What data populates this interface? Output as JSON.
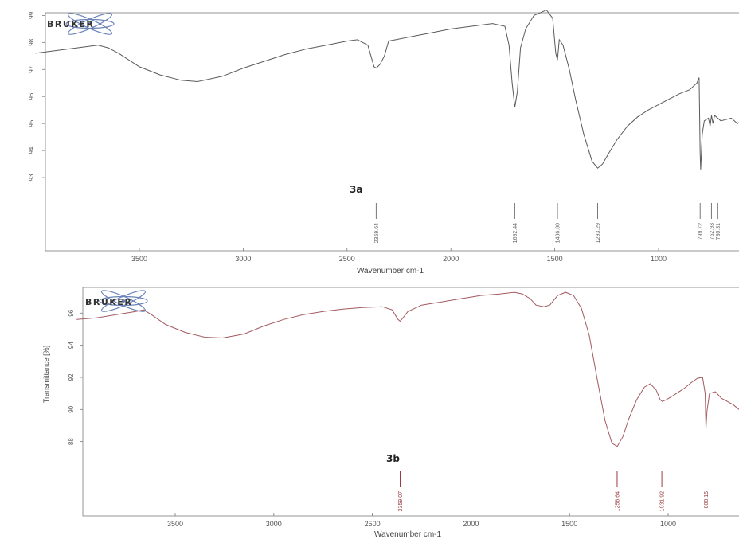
{
  "chart_data": [
    {
      "type": "line",
      "panel_label": "3a",
      "logo": "BRUKER",
      "xlabel": "Wavenumber cm-1",
      "ylabel": "",
      "xlim": [
        4000,
        400
      ],
      "ylim": [
        92.5,
        99.1
      ],
      "xticks": [
        3500,
        3000,
        2500,
        2000,
        1500,
        1000
      ],
      "xtick_labels": [
        "3500",
        "3000",
        "2500",
        "2000",
        "1500",
        "1000"
      ],
      "yticks": [
        93,
        94,
        95,
        96,
        97,
        98,
        99
      ],
      "ytick_labels": [
        "93",
        "94",
        "95",
        "96",
        "97",
        "98",
        "99"
      ],
      "peaks": [
        {
          "x": 2359.64,
          "label": "2359.64"
        },
        {
          "x": 1692.44,
          "label": "1692.44"
        },
        {
          "x": 1486.8,
          "label": "1486.80"
        },
        {
          "x": 1293.29,
          "label": "1293.29"
        },
        {
          "x": 799.72,
          "label": "799.72"
        },
        {
          "x": 752.93,
          "label": "752.93"
        },
        {
          "x": 730.31,
          "label": "730.31"
        }
      ],
      "series": [
        {
          "color": "#5a5a5a",
          "points": [
            [
              4000,
              97.6
            ],
            [
              3900,
              97.7
            ],
            [
              3800,
              97.8
            ],
            [
              3700,
              97.9
            ],
            [
              3650,
              97.8
            ],
            [
              3600,
              97.6
            ],
            [
              3500,
              97.1
            ],
            [
              3400,
              96.8
            ],
            [
              3300,
              96.6
            ],
            [
              3220,
              96.55
            ],
            [
              3100,
              96.75
            ],
            [
              3000,
              97.05
            ],
            [
              2900,
              97.3
            ],
            [
              2800,
              97.55
            ],
            [
              2700,
              97.75
            ],
            [
              2600,
              97.9
            ],
            [
              2500,
              98.05
            ],
            [
              2450,
              98.1
            ],
            [
              2400,
              97.9
            ],
            [
              2370,
              97.1
            ],
            [
              2359,
              97.05
            ],
            [
              2340,
              97.2
            ],
            [
              2320,
              97.5
            ],
            [
              2300,
              98.05
            ],
            [
              2200,
              98.2
            ],
            [
              2100,
              98.35
            ],
            [
              2000,
              98.5
            ],
            [
              1900,
              98.6
            ],
            [
              1800,
              98.7
            ],
            [
              1740,
              98.6
            ],
            [
              1720,
              97.9
            ],
            [
              1705,
              96.5
            ],
            [
              1692,
              95.6
            ],
            [
              1680,
              96.2
            ],
            [
              1665,
              97.8
            ],
            [
              1640,
              98.5
            ],
            [
              1600,
              99.0
            ],
            [
              1540,
              99.2
            ],
            [
              1510,
              98.9
            ],
            [
              1495,
              97.6
            ],
            [
              1487,
              97.35
            ],
            [
              1478,
              98.1
            ],
            [
              1460,
              97.9
            ],
            [
              1430,
              97.0
            ],
            [
              1400,
              95.9
            ],
            [
              1360,
              94.6
            ],
            [
              1320,
              93.6
            ],
            [
              1293,
              93.35
            ],
            [
              1270,
              93.5
            ],
            [
              1240,
              93.9
            ],
            [
              1200,
              94.4
            ],
            [
              1150,
              94.9
            ],
            [
              1100,
              95.25
            ],
            [
              1050,
              95.5
            ],
            [
              1000,
              95.7
            ],
            [
              950,
              95.9
            ],
            [
              900,
              96.1
            ],
            [
              850,
              96.25
            ],
            [
              815,
              96.5
            ],
            [
              805,
              96.7
            ],
            [
              800,
              93.9
            ],
            [
              797,
              93.3
            ],
            [
              790,
              94.6
            ],
            [
              780,
              95.1
            ],
            [
              760,
              95.2
            ],
            [
              752,
              94.9
            ],
            [
              745,
              95.3
            ],
            [
              738,
              95.0
            ],
            [
              730,
              95.3
            ],
            [
              700,
              95.1
            ],
            [
              650,
              95.2
            ],
            [
              620,
              95.0
            ],
            [
              600,
              95.1
            ],
            [
              560,
              95.2
            ],
            [
              530,
              95.3
            ],
            [
              500,
              95.5
            ]
          ]
        }
      ]
    },
    {
      "type": "line",
      "panel_label": "3b",
      "logo": "BRUKER",
      "xlabel": "Wavenumber cm-1",
      "ylabel": "Transmittance [%]",
      "xlim": [
        4000,
        400
      ],
      "ylim": [
        86.0,
        97.6
      ],
      "xticks": [
        3500,
        3000,
        2500,
        2000,
        1500,
        1000
      ],
      "xtick_labels": [
        "3500",
        "3000",
        "2500",
        "2000",
        "1500",
        "1000"
      ],
      "yticks": [
        88,
        90,
        92,
        94,
        96
      ],
      "ytick_labels": [
        "88",
        "90",
        "92",
        "94",
        "96"
      ],
      "peaks": [
        {
          "x": 2359.07,
          "label": "2359.07"
        },
        {
          "x": 1258.64,
          "label": "1258.64"
        },
        {
          "x": 1031.92,
          "label": "1031.92"
        },
        {
          "x": 808.15,
          "label": "808.15"
        }
      ],
      "series": [
        {
          "color": "#a35a5f",
          "points": [
            [
              4000,
              95.6
            ],
            [
              3900,
              95.7
            ],
            [
              3800,
              95.9
            ],
            [
              3700,
              96.1
            ],
            [
              3660,
              96.2
            ],
            [
              3620,
              95.9
            ],
            [
              3550,
              95.3
            ],
            [
              3450,
              94.8
            ],
            [
              3350,
              94.5
            ],
            [
              3260,
              94.45
            ],
            [
              3150,
              94.7
            ],
            [
              3050,
              95.2
            ],
            [
              2950,
              95.6
            ],
            [
              2850,
              95.9
            ],
            [
              2750,
              96.1
            ],
            [
              2650,
              96.25
            ],
            [
              2550,
              96.35
            ],
            [
              2450,
              96.4
            ],
            [
              2400,
              96.2
            ],
            [
              2370,
              95.6
            ],
            [
              2359,
              95.5
            ],
            [
              2345,
              95.7
            ],
            [
              2320,
              96.1
            ],
            [
              2250,
              96.5
            ],
            [
              2150,
              96.7
            ],
            [
              2050,
              96.9
            ],
            [
              1950,
              97.1
            ],
            [
              1850,
              97.2
            ],
            [
              1780,
              97.3
            ],
            [
              1740,
              97.2
            ],
            [
              1700,
              96.9
            ],
            [
              1670,
              96.5
            ],
            [
              1630,
              96.4
            ],
            [
              1600,
              96.5
            ],
            [
              1560,
              97.1
            ],
            [
              1520,
              97.3
            ],
            [
              1480,
              97.1
            ],
            [
              1440,
              96.3
            ],
            [
              1400,
              94.6
            ],
            [
              1360,
              91.9
            ],
            [
              1320,
              89.3
            ],
            [
              1285,
              87.9
            ],
            [
              1258,
              87.7
            ],
            [
              1230,
              88.3
            ],
            [
              1200,
              89.4
            ],
            [
              1160,
              90.6
            ],
            [
              1120,
              91.4
            ],
            [
              1090,
              91.6
            ],
            [
              1060,
              91.2
            ],
            [
              1040,
              90.6
            ],
            [
              1030,
              90.5
            ],
            [
              1010,
              90.6
            ],
            [
              970,
              90.9
            ],
            [
              920,
              91.3
            ],
            [
              880,
              91.7
            ],
            [
              850,
              91.95
            ],
            [
              825,
              92.0
            ],
            [
              812,
              91.0
            ],
            [
              808,
              88.8
            ],
            [
              803,
              89.9
            ],
            [
              790,
              91.0
            ],
            [
              760,
              91.1
            ],
            [
              730,
              90.7
            ],
            [
              700,
              90.5
            ],
            [
              670,
              90.3
            ],
            [
              640,
              90.0
            ],
            [
              620,
              89.7
            ],
            [
              600,
              89.8
            ],
            [
              590,
              89.6
            ]
          ]
        }
      ]
    }
  ]
}
